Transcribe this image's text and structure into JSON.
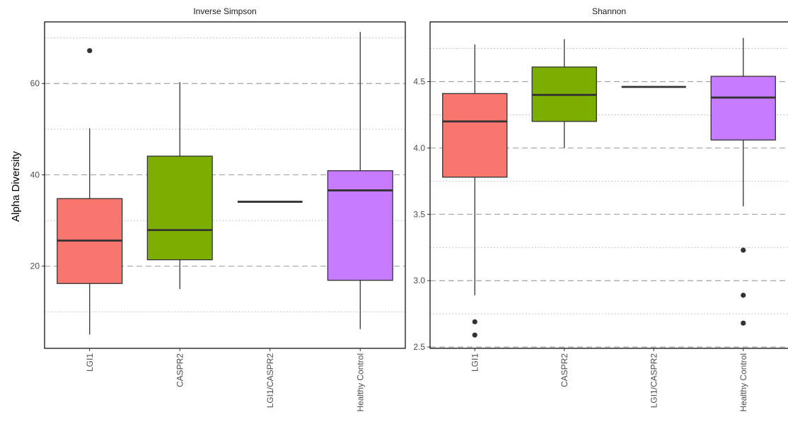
{
  "chart_data": {
    "type": "box",
    "ylabel": "Alpha Diversity",
    "colors": {
      "LGI1": "#F8766D",
      "CASPR2": "#7CAE00",
      "LGI1/CASPR2": "#00BFC4",
      "Healthy Control": "#C77CFF"
    },
    "panels": [
      {
        "title": "Inverse Simpson",
        "categories": [
          "LGI1",
          "CASPR2",
          "LGI1/CASPR2",
          "Healthy Control"
        ],
        "ylim": [
          2,
          73.5
        ],
        "major_ticks": [
          20,
          40,
          60
        ],
        "minor_ticks": [
          10,
          30,
          50,
          70
        ],
        "grid": true,
        "boxes": [
          {
            "group": "LGI1",
            "min": 5,
            "q1": 16.2,
            "median": 25.6,
            "q3": 34.8,
            "max": 50.2,
            "outliers": [
              67.2
            ]
          },
          {
            "group": "CASPR2",
            "min": 15,
            "q1": 21.4,
            "median": 27.9,
            "q3": 44.1,
            "max": 60.3,
            "outliers": []
          },
          {
            "group": "LGI1/CASPR2",
            "min": 34.1,
            "q1": 34.1,
            "median": 34.1,
            "q3": 34.1,
            "max": 34.1,
            "outliers": []
          },
          {
            "group": "Healthy Control",
            "min": 6.2,
            "q1": 16.9,
            "median": 36.6,
            "q3": 40.9,
            "max": 71.3,
            "outliers": []
          }
        ]
      },
      {
        "title": "Shannon",
        "categories": [
          "LGI1",
          "CASPR2",
          "LGI1/CASPR2",
          "Healthy Control"
        ],
        "ylim": [
          2.49,
          4.95
        ],
        "major_ticks": [
          2.5,
          3.0,
          3.5,
          4.0,
          4.5
        ],
        "major_tick_labels": [
          "2.5",
          "3.0",
          "3.5",
          "4.0",
          "4.5"
        ],
        "minor_ticks": [
          2.75,
          3.25,
          3.75,
          4.25,
          4.75
        ],
        "grid": true,
        "boxes": [
          {
            "group": "LGI1",
            "min": 2.89,
            "q1": 3.78,
            "median": 4.2,
            "q3": 4.41,
            "max": 4.78,
            "outliers": [
              2.69,
              2.59
            ]
          },
          {
            "group": "CASPR2",
            "min": 4.0,
            "q1": 4.2,
            "median": 4.4,
            "q3": 4.61,
            "max": 4.82,
            "outliers": []
          },
          {
            "group": "LGI1/CASPR2",
            "min": 4.46,
            "q1": 4.46,
            "median": 4.46,
            "q3": 4.46,
            "max": 4.46,
            "outliers": []
          },
          {
            "group": "Healthy Control",
            "min": 3.56,
            "q1": 4.06,
            "median": 4.38,
            "q3": 4.54,
            "max": 4.83,
            "outliers": [
              3.23,
              2.89,
              2.68
            ]
          }
        ]
      }
    ]
  }
}
